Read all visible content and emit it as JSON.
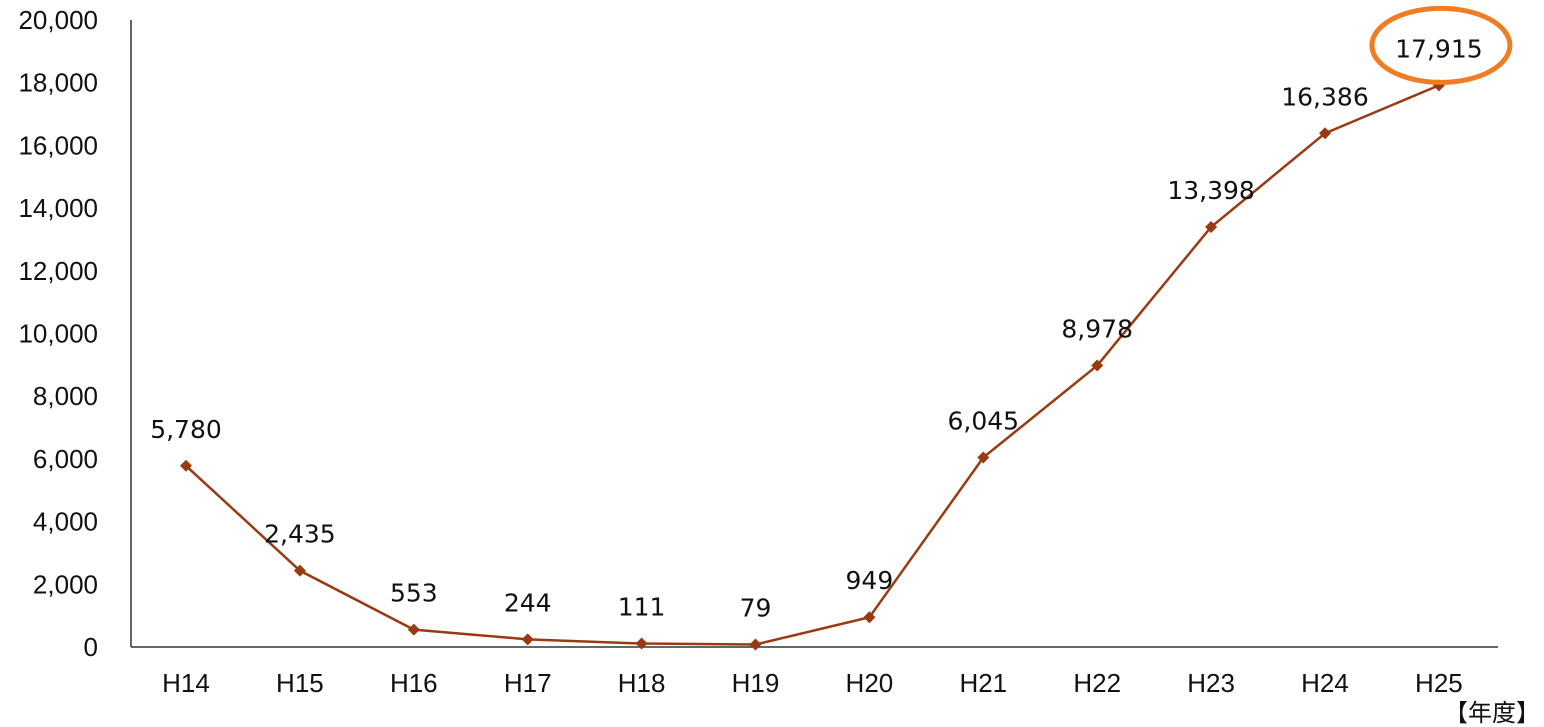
{
  "chart_data": {
    "type": "line",
    "title": "",
    "xlabel": "【年度】",
    "ylabel": "",
    "categories": [
      "H14",
      "H15",
      "H16",
      "H17",
      "H18",
      "H19",
      "H20",
      "H21",
      "H22",
      "H23",
      "H24",
      "H25"
    ],
    "series": [
      {
        "values": [
          5780,
          2435,
          553,
          244,
          111,
          79,
          949,
          6045,
          8978,
          13398,
          16386,
          17915
        ],
        "data_labels": [
          "5,780",
          "2,435",
          "553",
          "244",
          "111",
          "79",
          "949",
          "6,045",
          "8,978",
          "13,398",
          "16,386",
          "17,915"
        ]
      }
    ],
    "ylim": [
      0,
      20000
    ],
    "yticks": [
      0,
      2000,
      4000,
      6000,
      8000,
      10000,
      12000,
      14000,
      16000,
      18000,
      20000
    ],
    "ytick_labels": [
      "0",
      "2,000",
      "4,000",
      "6,000",
      "8,000",
      "10,000",
      "12,000",
      "14,000",
      "16,000",
      "18,000",
      "20,000"
    ],
    "grid": false,
    "legend": "none",
    "highlight": {
      "category": "H25",
      "shape": "ellipse"
    },
    "colors": {
      "line": "#9a3a12",
      "marker": "#9a3a12",
      "highlight": "#f07d22",
      "axis": "#333333"
    }
  }
}
